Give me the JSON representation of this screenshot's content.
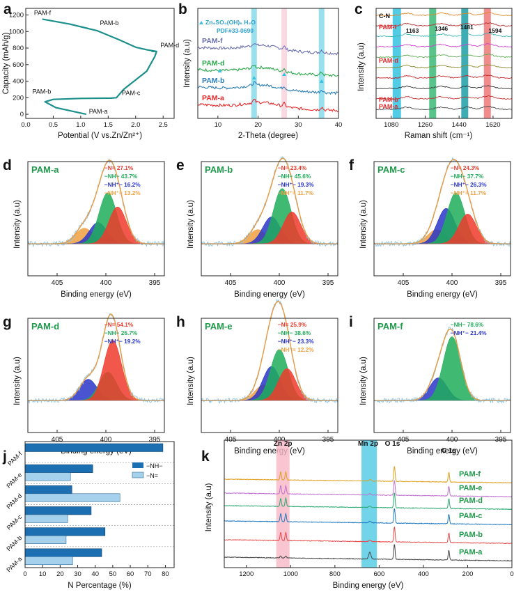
{
  "colors": {
    "teal": "#1b8f8c",
    "pamA": "#e8282a",
    "pamB": "#2a7db8",
    "pamD": "#2aa84a",
    "pamF": "#6b6fb0",
    "n_red": "#ef3b2c",
    "nh_green": "#1fae5a",
    "nhp_blue": "#2a35c8",
    "nhp2_orange": "#f0a040",
    "fit_orange": "#e89a40",
    "raw_blue": "#8ec6e6",
    "bar_dark": "#1c6fb0",
    "bar_light": "#a6d1ec",
    "band_cyan": "#34c2e0",
    "band_pink": "#f6b6c6",
    "band_green": "#3cb878",
    "band_teal": "#1d9ea6",
    "band_red": "#f07878"
  },
  "chart_data": [
    {
      "panel": "a",
      "type": "line",
      "xlabel": "Potential (V vs.Zn/Zn²⁺)",
      "ylabel": "Capacity (mAh/g)",
      "xticks": [
        "0.0",
        "0.5",
        "1.0",
        "1.5",
        "2.0",
        "2.5"
      ],
      "yticks": [
        "0",
        "200",
        "400",
        "600",
        "800",
        "1000",
        "1200"
      ],
      "xlim": [
        0,
        2.7
      ],
      "ylim": [
        -50,
        1280
      ],
      "x": [
        1.1,
        0.55,
        0.35,
        0.5,
        1.0,
        1.55,
        1.65,
        1.78,
        2.2,
        2.35,
        2.38,
        2.3,
        2.3,
        2.38,
        2.2,
        2.0,
        1.7,
        1.3,
        0.8,
        0.3
      ],
      "y": [
        0,
        80,
        150,
        180,
        192,
        195,
        200,
        300,
        520,
        700,
        760,
        760,
        760,
        760,
        780,
        810,
        900,
        1010,
        1090,
        1150
      ],
      "annotations": [
        {
          "text": "PAM-f",
          "x": 0.15,
          "y": 1200
        },
        {
          "text": "PAM-b",
          "x": 1.35,
          "y": 1080
        },
        {
          "text": "PAM-d",
          "x": 2.45,
          "y": 810
        },
        {
          "text": "PAM-b",
          "x": 0.12,
          "y": 250
        },
        {
          "text": "PAM-c",
          "x": 1.75,
          "y": 230
        },
        {
          "text": "PAM-a",
          "x": 1.15,
          "y": 10
        }
      ]
    },
    {
      "panel": "b",
      "type": "line",
      "xlabel": "2-Theta (degree)",
      "ylabel": "Intensity (a.u)",
      "xticks": [
        "10",
        "20",
        "30",
        "40"
      ],
      "xlim": [
        5,
        40
      ],
      "legend": [
        "Zn₄SO₄(OH)₆ H₂O",
        "PDF#33-0690"
      ],
      "highlight_bands_deg": [
        19,
        26.5,
        35.8
      ],
      "series": [
        {
          "name": "PAM-f",
          "offset": 4
        },
        {
          "name": "PAM-d",
          "offset": 3
        },
        {
          "name": "PAM-b",
          "offset": 2
        },
        {
          "name": "PAM-a",
          "offset": 1
        }
      ]
    },
    {
      "panel": "c",
      "type": "line",
      "xlabel": "Raman shift (cm⁻¹)",
      "ylabel": "Intensity (a.u)",
      "xticks": [
        "1080",
        "1260",
        "1440",
        "1620"
      ],
      "xlim": [
        1000,
        1720
      ],
      "peak_labels": [
        "1163",
        "1346",
        "1481",
        "1594"
      ],
      "band_label": "C-N",
      "series_labels": [
        "PAM-f",
        "PAM-d",
        "PAM-b",
        "PAM-a"
      ]
    },
    {
      "panel": "d",
      "type": "xps-fit",
      "title": "PAM-a",
      "xlabel": "Binding energy (eV)",
      "ylabel": "Intensity (a.u)",
      "xticks": [
        "405",
        "400",
        "395"
      ],
      "xlim": [
        408,
        394
      ],
      "components": [
        {
          "name": "−N=",
          "pct": "27.1%",
          "center": 398.8,
          "height": 0.52
        },
        {
          "name": "−NH−",
          "pct": "43.7%",
          "center": 399.8,
          "height": 0.72
        },
        {
          "name": "−NH⁺−",
          "pct": "16.2%",
          "center": 400.8,
          "height": 0.3
        },
        {
          "name": "−NH⁺=",
          "pct": "13.2%",
          "center": 402.2,
          "height": 0.22
        }
      ]
    },
    {
      "panel": "e",
      "type": "xps-fit",
      "title": "PAM-b",
      "xlabel": "Binding energy (eV)",
      "ylabel": "Intensity (a.u)",
      "xticks": [
        "405",
        "400",
        "395"
      ],
      "xlim": [
        408,
        394
      ],
      "components": [
        {
          "name": "−N=",
          "pct": "23.4%",
          "center": 398.7,
          "height": 0.45
        },
        {
          "name": "−NH−",
          "pct": "45.6%",
          "center": 399.7,
          "height": 0.78
        },
        {
          "name": "−NH⁺−",
          "pct": "19.3%",
          "center": 400.8,
          "height": 0.38
        },
        {
          "name": "−NH⁺=",
          "pct": "11.7%",
          "center": 402.2,
          "height": 0.2
        }
      ]
    },
    {
      "panel": "f",
      "type": "xps-fit",
      "title": "PAM-c",
      "xlabel": "Binding energy (eV)",
      "ylabel": "Intensity (a.u)",
      "xticks": [
        "405",
        "400",
        "395"
      ],
      "xlim": [
        408,
        394
      ],
      "components": [
        {
          "name": "−N=",
          "pct": "24.3%",
          "center": 398.4,
          "height": 0.42
        },
        {
          "name": "−NH−",
          "pct": "37.7%",
          "center": 399.6,
          "height": 0.72
        },
        {
          "name": "−NH⁺−",
          "pct": "26.3%",
          "center": 400.6,
          "height": 0.5
        },
        {
          "name": "−NH⁺=",
          "pct": "11.7%",
          "center": 401.6,
          "height": 0.2
        }
      ]
    },
    {
      "panel": "g",
      "type": "xps-fit",
      "title": "PAM-d",
      "xlabel": "Binding energy (eV)",
      "ylabel": "Intensity (a.u)",
      "xticks": [
        "405",
        "400",
        "395"
      ],
      "xlim": [
        408,
        394
      ],
      "components": [
        {
          "name": "−N=",
          "pct": "54.1%",
          "center": 399.3,
          "height": 0.85
        },
        {
          "name": "−NH−",
          "pct": "26.7%",
          "center": 399.8,
          "height": 0.4
        },
        {
          "name": "−NH⁺−",
          "pct": "19.2%",
          "center": 401.8,
          "height": 0.3
        }
      ]
    },
    {
      "panel": "h",
      "type": "xps-fit",
      "title": "PAM-e",
      "xlabel": "Binding energy (eV)",
      "ylabel": "Intensity (a.u)",
      "xticks": [
        "405",
        "400",
        "395"
      ],
      "xlim": [
        408,
        394
      ],
      "components": [
        {
          "name": "−N=",
          "pct": "25.9%",
          "center": 399.2,
          "height": 0.45
        },
        {
          "name": "−NH−",
          "pct": "38.6%",
          "center": 400.0,
          "height": 0.72
        },
        {
          "name": "−NH⁺−",
          "pct": "23.3%",
          "center": 400.8,
          "height": 0.48
        },
        {
          "name": "−NH⁺=",
          "pct": "12.2%",
          "center": 401.6,
          "height": 0.22
        }
      ]
    },
    {
      "panel": "i",
      "type": "xps-fit",
      "title": "PAM-f",
      "xlabel": "Binding energy (eV)",
      "ylabel": "Intensity (a.u)",
      "xticks": [
        "405",
        "400",
        "395"
      ],
      "xlim": [
        408,
        394
      ],
      "components": [
        {
          "name": "−NH−",
          "pct": "78.6%",
          "center": 400.0,
          "height": 0.9
        },
        {
          "name": "−NH⁺−",
          "pct": "21.4%",
          "center": 401.4,
          "height": 0.32
        }
      ]
    },
    {
      "panel": "j",
      "type": "bar",
      "xlabel": "N Percentage (%)",
      "xticks": [
        "0",
        "10",
        "20",
        "30",
        "40",
        "50",
        "60",
        "70",
        "80"
      ],
      "xlim": [
        0,
        85
      ],
      "categories": [
        "PAM-f",
        "PAM-e",
        "PAM-d",
        "PAM-c",
        "PAM-b",
        "PAM-a"
      ],
      "legend": [
        "−NH−",
        "−N="
      ],
      "series": [
        {
          "name": "−NH−",
          "values": [
            78.6,
            38.6,
            26.7,
            37.7,
            45.6,
            43.7
          ]
        },
        {
          "name": "−N=",
          "values": [
            0,
            25.9,
            54.1,
            24.3,
            23.4,
            27.1
          ]
        }
      ]
    },
    {
      "panel": "k",
      "type": "line",
      "xlabel": "Binding energy (eV)",
      "ylabel": "Intensity (a.u)",
      "xticks": [
        "1200",
        "1000",
        "800",
        "600",
        "400",
        "200",
        "0"
      ],
      "xlim": [
        1300,
        0
      ],
      "peak_labels": [
        "Zn 2p",
        "Mn 2p",
        "O 1s",
        "C 1s"
      ],
      "series_labels": [
        "PAM-f",
        "PAM-e",
        "PAM-d",
        "PAM-c",
        "PAM-b",
        "PAM-a"
      ]
    }
  ],
  "panel_letters": [
    "a",
    "b",
    "c",
    "d",
    "e",
    "f",
    "g",
    "h",
    "i",
    "j",
    "k"
  ]
}
